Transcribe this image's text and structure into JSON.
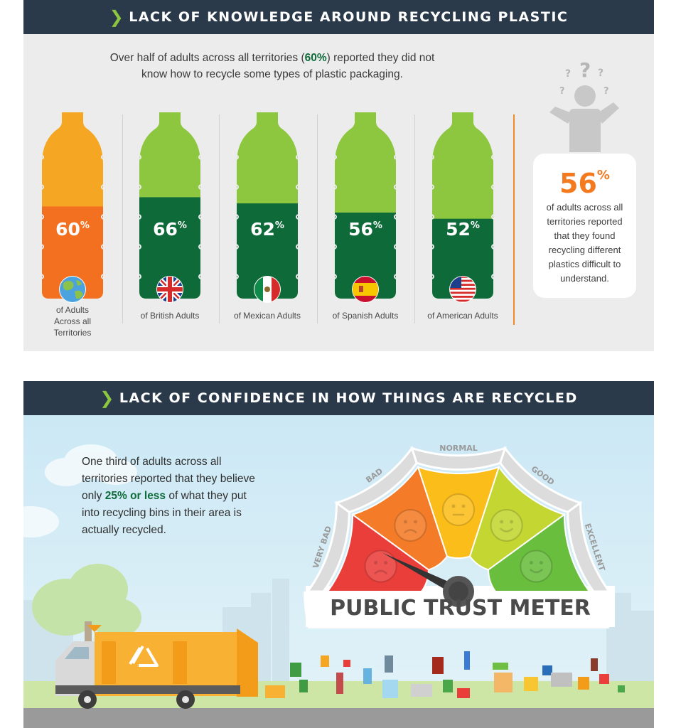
{
  "section1": {
    "title": "LACK OF KNOWLEDGE AROUND RECYCLING PLASTIC",
    "intro_before": "Over half of adults across all territories (",
    "intro_highlight": "60%",
    "intro_after": ") reported they did not know how to recycle some types of plastic packaging.",
    "side_stat": {
      "value": "56",
      "unit": "%",
      "text": "of adults across all territories reported that they found recycling different plastics difficult to understand."
    }
  },
  "section2": {
    "title": "LACK OF CONFIDENCE IN HOW THINGS ARE RECYCLED",
    "intro_before": "One third of adults across all territories reported that they believe only ",
    "intro_highlight": "25% or less",
    "intro_after": " of what they put into recycling bins in their area is actually recycled.",
    "meter": {
      "title": "PUBLIC TRUST METER",
      "segments": [
        {
          "label": "VERY BAD",
          "color": "#ea3e3b",
          "face": "frown"
        },
        {
          "label": "BAD",
          "color": "#f47b27",
          "face": "frown"
        },
        {
          "label": "NORMAL",
          "color": "#fbbd1a",
          "face": "neutral"
        },
        {
          "label": "GOOD",
          "color": "#c3d632",
          "face": "smile"
        },
        {
          "label": "EXCELLENT",
          "color": "#69be3e",
          "face": "smile"
        }
      ],
      "needle_segment": "VERY BAD"
    }
  },
  "chart_data": {
    "type": "bar",
    "title": "",
    "categories": [
      "of Adults Across all Territories",
      "of British Adults",
      "of Mexican Adults",
      "of Spanish Adults",
      "of American Adults"
    ],
    "values": [
      60,
      66,
      62,
      56,
      52
    ],
    "value_labels": [
      "60",
      "66",
      "62",
      "56",
      "52"
    ],
    "unit": "%",
    "ylim": [
      0,
      100
    ],
    "icons": [
      "globe-icon",
      "uk-flag-icon",
      "mexico-flag-icon",
      "spain-flag-icon",
      "usa-flag-icon"
    ],
    "colors": {
      "first_fill": "#f37021",
      "first_empty": "#f5a623",
      "fill": "#0e6b39",
      "empty": "#8dc63f"
    }
  }
}
